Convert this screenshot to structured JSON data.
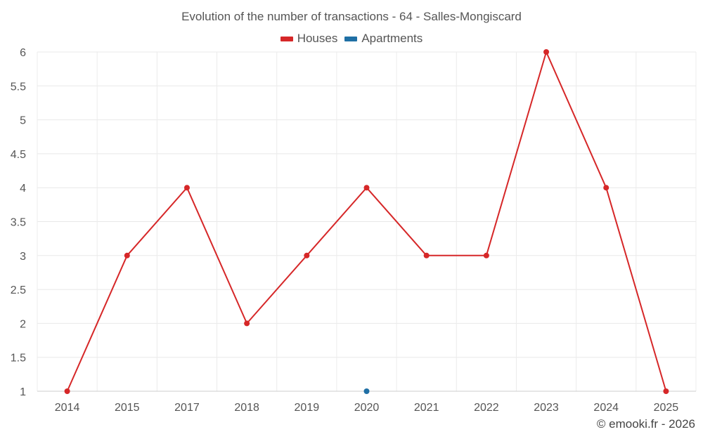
{
  "chart_data": {
    "type": "line",
    "title": "Evolution of the number of transactions - 64 - Salles-Mongiscard",
    "categories": [
      "2014",
      "2015",
      "2017",
      "2018",
      "2019",
      "2020",
      "2021",
      "2022",
      "2023",
      "2024",
      "2025"
    ],
    "series": [
      {
        "name": "Houses",
        "color": "#d62728",
        "values": [
          1,
          3,
          4,
          2,
          3,
          4,
          3,
          3,
          6,
          4,
          1
        ]
      },
      {
        "name": "Apartments",
        "color": "#1f6fa5",
        "values": [
          null,
          null,
          null,
          null,
          null,
          1,
          null,
          null,
          null,
          null,
          null
        ]
      }
    ],
    "y_ticks": [
      "1",
      "1.5",
      "2",
      "2.5",
      "3",
      "3.5",
      "4",
      "4.5",
      "5",
      "5.5",
      "6"
    ],
    "ylim": [
      1,
      6
    ],
    "grid": true,
    "legend_position": "top-center",
    "xlabel": "",
    "ylabel": ""
  },
  "credit": "© emooki.fr - 2026"
}
